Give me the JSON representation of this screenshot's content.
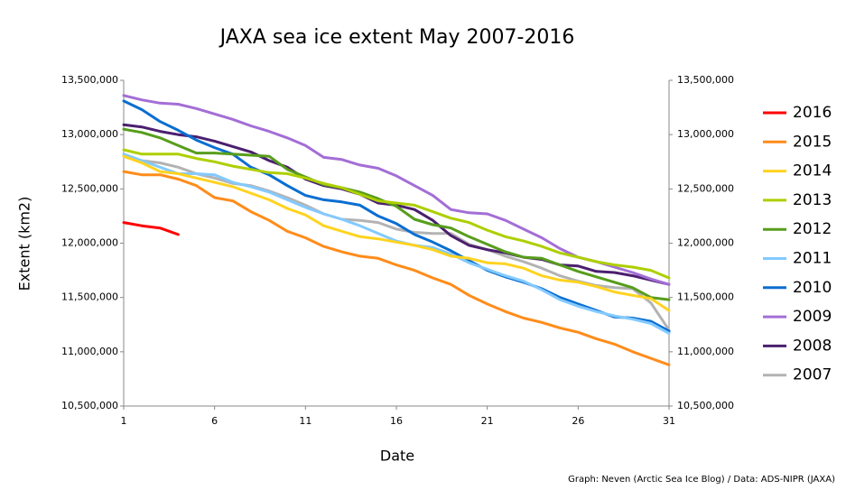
{
  "chart_data": {
    "type": "line",
    "title": "JAXA sea ice extent May 2007-2016",
    "xlabel": "Date",
    "ylabel": "Extent (km2)",
    "footnote": "Graph: Neven (Arctic Sea Ice Blog) / Data: ADS-NIPR (JAXA)",
    "x": [
      1,
      2,
      3,
      4,
      5,
      6,
      7,
      8,
      9,
      10,
      11,
      12,
      13,
      14,
      15,
      16,
      17,
      18,
      19,
      20,
      21,
      22,
      23,
      24,
      25,
      26,
      27,
      28,
      29,
      30,
      31
    ],
    "xlim": [
      1,
      31
    ],
    "xticks": [
      1,
      6,
      11,
      16,
      21,
      26,
      31
    ],
    "ylim": [
      10500000,
      13500000
    ],
    "yticks": [
      {
        "value": 10500000,
        "label": "10,500,000"
      },
      {
        "value": 11000000,
        "label": "11,000,000"
      },
      {
        "value": 11500000,
        "label": "11,500,000"
      },
      {
        "value": 12000000,
        "label": "12,000,000"
      },
      {
        "value": 12500000,
        "label": "12,500,000"
      },
      {
        "value": 13000000,
        "label": "13,000,000"
      },
      {
        "value": 13500000,
        "label": "13,500,000"
      }
    ],
    "y2lim": [
      10500000,
      13500000
    ],
    "y2ticks": [
      {
        "value": 10500000,
        "label": "10,500,000"
      },
      {
        "value": 11000000,
        "label": "11,000,000"
      },
      {
        "value": 11500000,
        "label": "11,500,000"
      },
      {
        "value": 12000000,
        "label": "12,000,000"
      },
      {
        "value": 12500000,
        "label": "12,500,000"
      },
      {
        "value": 13000000,
        "label": "13,000,000"
      },
      {
        "value": 13500000,
        "label": "13,500,000"
      }
    ],
    "grid": false,
    "legend": "right",
    "series": [
      {
        "name": "2016",
        "color": "#ff0000",
        "values": [
          12190000,
          12160000,
          12140000,
          12080000,
          null,
          null,
          null,
          null,
          null,
          null,
          null,
          null,
          null,
          null,
          null,
          null,
          null,
          null,
          null,
          null,
          null,
          null,
          null,
          null,
          null,
          null,
          null,
          null,
          null,
          null,
          null
        ]
      },
      {
        "name": "2015",
        "color": "#ff8c1a",
        "values": [
          12660000,
          12630000,
          12630000,
          12590000,
          12530000,
          12420000,
          12390000,
          12290000,
          12210000,
          12110000,
          12050000,
          11970000,
          11920000,
          11880000,
          11860000,
          11800000,
          11750000,
          11680000,
          11620000,
          11520000,
          11440000,
          11370000,
          11310000,
          11270000,
          11220000,
          11180000,
          11120000,
          11070000,
          11000000,
          10940000,
          10880000
        ]
      },
      {
        "name": "2014",
        "color": "#ffd320",
        "values": [
          12800000,
          12740000,
          12660000,
          12640000,
          12600000,
          12560000,
          12520000,
          12460000,
          12400000,
          12320000,
          12260000,
          12160000,
          12110000,
          12060000,
          12040000,
          12010000,
          11980000,
          11940000,
          11880000,
          11860000,
          11820000,
          11810000,
          11770000,
          11700000,
          11660000,
          11640000,
          11600000,
          11550000,
          11520000,
          11490000,
          11380000
        ]
      },
      {
        "name": "2013",
        "color": "#aecf00",
        "values": [
          12860000,
          12820000,
          12820000,
          12820000,
          12780000,
          12750000,
          12710000,
          12680000,
          12650000,
          12640000,
          12600000,
          12550000,
          12510000,
          12450000,
          12390000,
          12370000,
          12350000,
          12290000,
          12230000,
          12190000,
          12120000,
          12060000,
          12020000,
          11970000,
          11910000,
          11870000,
          11830000,
          11800000,
          11780000,
          11750000,
          11680000
        ]
      },
      {
        "name": "2012",
        "color": "#579d1c",
        "values": [
          13050000,
          13020000,
          12970000,
          12900000,
          12830000,
          12830000,
          12820000,
          12810000,
          12800000,
          12680000,
          12610000,
          12540000,
          12510000,
          12470000,
          12410000,
          12340000,
          12220000,
          12170000,
          12140000,
          12060000,
          11990000,
          11920000,
          11870000,
          11860000,
          11800000,
          11740000,
          11690000,
          11640000,
          11590000,
          11500000,
          11480000
        ]
      },
      {
        "name": "2011",
        "color": "#83caff",
        "values": [
          12820000,
          12760000,
          12700000,
          12640000,
          12640000,
          12630000,
          12560000,
          12520000,
          12470000,
          12400000,
          12330000,
          12270000,
          12220000,
          12160000,
          12090000,
          12020000,
          11980000,
          11960000,
          11900000,
          11820000,
          11760000,
          11700000,
          11650000,
          11570000,
          11480000,
          11420000,
          11370000,
          11330000,
          11300000,
          11260000,
          11170000
        ]
      },
      {
        "name": "2010",
        "color": "#0a6ed1",
        "values": [
          13310000,
          13230000,
          13120000,
          13040000,
          12950000,
          12880000,
          12820000,
          12700000,
          12630000,
          12530000,
          12440000,
          12400000,
          12380000,
          12350000,
          12250000,
          12180000,
          12080000,
          12010000,
          11930000,
          11840000,
          11750000,
          11690000,
          11640000,
          11580000,
          11500000,
          11440000,
          11380000,
          11320000,
          11310000,
          11280000,
          11190000
        ]
      },
      {
        "name": "2009",
        "color": "#a36ed6",
        "values": [
          13360000,
          13320000,
          13290000,
          13280000,
          13240000,
          13190000,
          13140000,
          13080000,
          13030000,
          12970000,
          12900000,
          12790000,
          12770000,
          12720000,
          12690000,
          12620000,
          12530000,
          12440000,
          12310000,
          12280000,
          12270000,
          12210000,
          12130000,
          12050000,
          11950000,
          11870000,
          11830000,
          11780000,
          11730000,
          11670000,
          11620000
        ]
      },
      {
        "name": "2008",
        "color": "#4b1f6f",
        "values": [
          13090000,
          13070000,
          13030000,
          13000000,
          12980000,
          12940000,
          12890000,
          12840000,
          12760000,
          12700000,
          12590000,
          12530000,
          12500000,
          12450000,
          12370000,
          12350000,
          12310000,
          12210000,
          12070000,
          11980000,
          11940000,
          11910000,
          11870000,
          11850000,
          11800000,
          11790000,
          11740000,
          11730000,
          11700000,
          11660000,
          11620000
        ]
      },
      {
        "name": "2007",
        "color": "#b3b3b3",
        "values": [
          12800000,
          12760000,
          12740000,
          12700000,
          12640000,
          12600000,
          12550000,
          12530000,
          12480000,
          12420000,
          12350000,
          12270000,
          12220000,
          12210000,
          12190000,
          12130000,
          12100000,
          12090000,
          12090000,
          11990000,
          11940000,
          11880000,
          11830000,
          11770000,
          11700000,
          11650000,
          11610000,
          11590000,
          11580000,
          11450000,
          11200000
        ]
      }
    ]
  }
}
